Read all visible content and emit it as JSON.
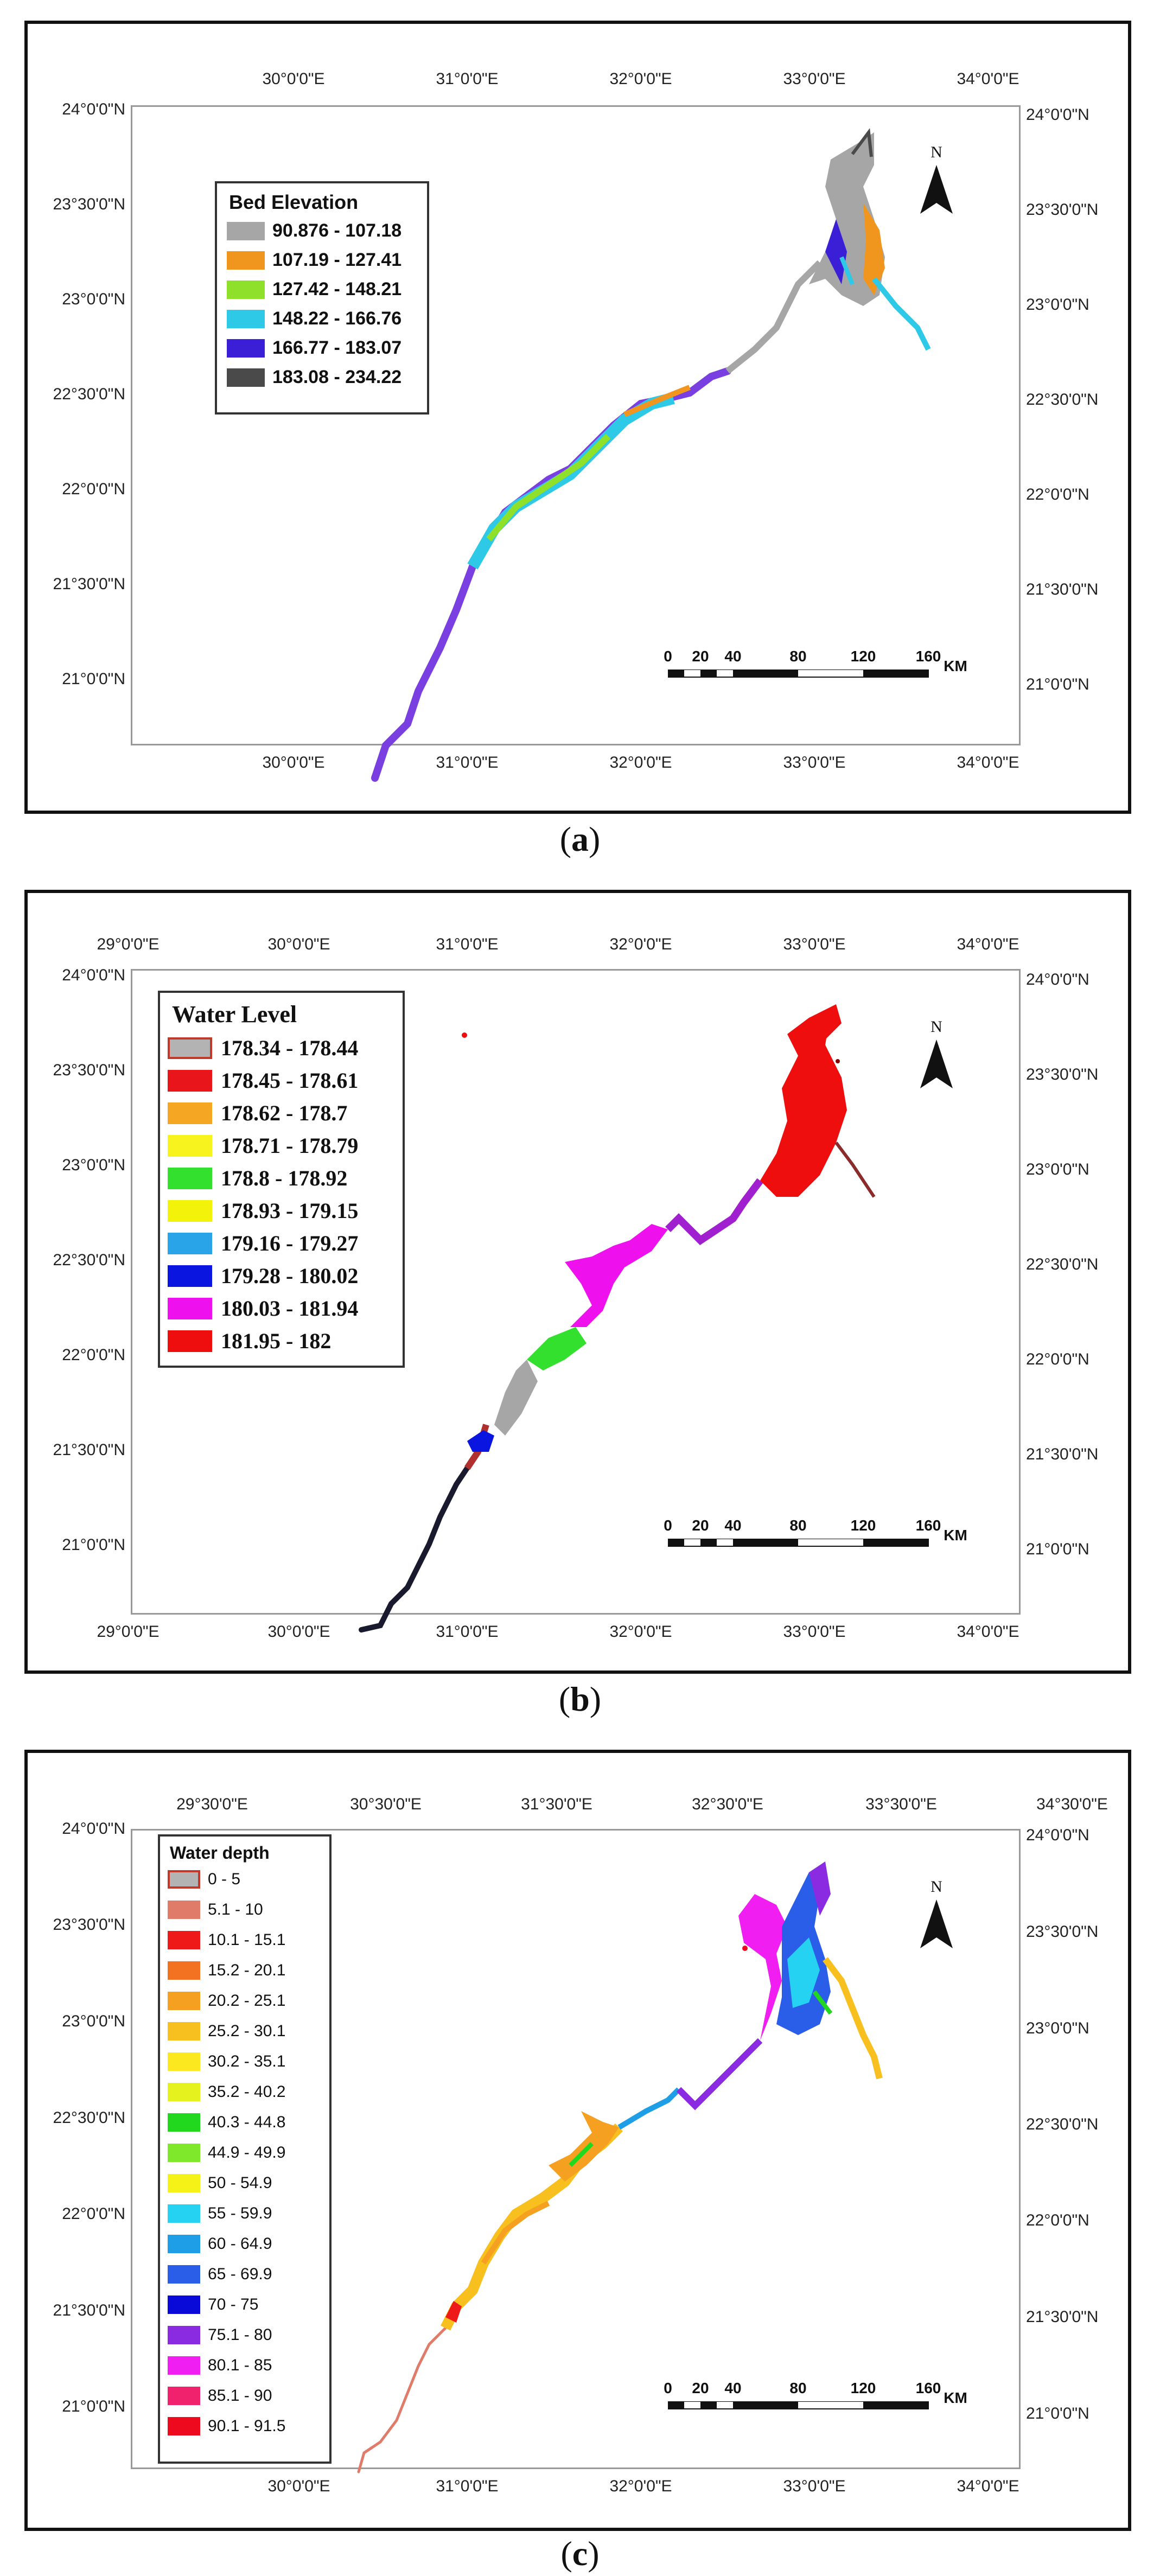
{
  "panels": [
    {
      "id": "a",
      "caption_open": "(",
      "caption_letter": "a",
      "caption_close": ")",
      "top_ticks": [
        "30°0'0\"E",
        "31°0'0\"E",
        "32°0'0\"E",
        "33°0'0\"E",
        "34°0'0\"E"
      ],
      "bottom_ticks": [
        "30°0'0\"E",
        "31°0'0\"E",
        "32°0'0\"E",
        "33°0'0\"E",
        "34°0'0\"E"
      ],
      "left_ticks": [
        "24°0'0\"N",
        "23°30'0\"N",
        "23°0'0\"N",
        "22°30'0\"N",
        "22°0'0\"N",
        "21°30'0\"N",
        "21°0'0\"N"
      ],
      "right_ticks": [
        "24°0'0\"N",
        "23°30'0\"N",
        "23°0'0\"N",
        "22°30'0\"N",
        "22°0'0\"N",
        "21°30'0\"N",
        "21°0'0\"N"
      ],
      "legend": {
        "title": "Bed Elevation",
        "items": [
          {
            "label": "90.876 - 107.18",
            "color": "#a6a6a6"
          },
          {
            "label": "107.19 - 127.41",
            "color": "#f0961e"
          },
          {
            "label": "127.42 - 148.21",
            "color": "#8fe02a"
          },
          {
            "label": "148.22 - 166.76",
            "color": "#2fc9e8"
          },
          {
            "label": "166.77 - 183.07",
            "color": "#3a1fd6"
          },
          {
            "label": "183.08 - 234.22",
            "color": "#4a4a4a"
          }
        ]
      },
      "scale": {
        "labels": [
          "0",
          "20",
          "40",
          "80",
          "120",
          "160"
        ],
        "unit": "KM"
      },
      "north": "N"
    },
    {
      "id": "b",
      "caption_open": "(",
      "caption_letter": "b",
      "caption_close": ")",
      "top_ticks": [
        "29°0'0\"E",
        "30°0'0\"E",
        "31°0'0\"E",
        "32°0'0\"E",
        "33°0'0\"E",
        "34°0'0\"E"
      ],
      "bottom_ticks": [
        "29°0'0\"E",
        "30°0'0\"E",
        "31°0'0\"E",
        "32°0'0\"E",
        "33°0'0\"E",
        "34°0'0\"E"
      ],
      "left_ticks": [
        "24°0'0\"N",
        "23°30'0\"N",
        "23°0'0\"N",
        "22°30'0\"N",
        "22°0'0\"N",
        "21°30'0\"N",
        "21°0'0\"N"
      ],
      "right_ticks": [
        "24°0'0\"N",
        "23°30'0\"N",
        "23°0'0\"N",
        "22°30'0\"N",
        "22°0'0\"N",
        "21°30'0\"N",
        "21°0'0\"N"
      ],
      "legend": {
        "title": "Water Level",
        "items": [
          {
            "label": "178.34 - 178.44",
            "color": "#b3b3b3",
            "outline": "#c0392b"
          },
          {
            "label": "178.45 - 178.61",
            "color": "#e8161b"
          },
          {
            "label": "178.62 - 178.7",
            "color": "#f5a623"
          },
          {
            "label": "178.71 - 178.79",
            "color": "#f7f31f"
          },
          {
            "label": "178.8 - 178.92",
            "color": "#33e02e"
          },
          {
            "label": "178.93 - 179.15",
            "color": "#f2f20a"
          },
          {
            "label": "179.16 - 179.27",
            "color": "#29a4e8"
          },
          {
            "label": "179.28 - 180.02",
            "color": "#0a16e0"
          },
          {
            "label": "180.03 - 181.94",
            "color": "#ee11ee"
          },
          {
            "label": "181.95 - 182",
            "color": "#ee0e0e"
          }
        ]
      },
      "scale": {
        "labels": [
          "0",
          "20",
          "40",
          "80",
          "120",
          "160"
        ],
        "unit": "KM"
      },
      "north": "N"
    },
    {
      "id": "c",
      "caption_open": "(",
      "caption_letter": "c",
      "caption_close": ")",
      "top_ticks": [
        "29°30'0\"E",
        "30°30'0\"E",
        "31°30'0\"E",
        "32°30'0\"E",
        "33°30'0\"E",
        "34°30'0\"E"
      ],
      "bottom_ticks": [
        "30°0'0\"E",
        "31°0'0\"E",
        "32°0'0\"E",
        "33°0'0\"E",
        "34°0'0\"E"
      ],
      "left_ticks": [
        "24°0'0\"N",
        "23°30'0\"N",
        "23°0'0\"N",
        "22°30'0\"N",
        "22°0'0\"N",
        "21°30'0\"N",
        "21°0'0\"N"
      ],
      "right_ticks": [
        "24°0'0\"N",
        "23°30'0\"N",
        "23°0'0\"N",
        "22°30'0\"N",
        "22°0'0\"N",
        "21°30'0\"N",
        "21°0'0\"N"
      ],
      "legend": {
        "title": "Water depth",
        "items": [
          {
            "label": "0 - 5",
            "color": "#b3b3b3",
            "outline": "#c0392b"
          },
          {
            "label": "5.1 - 10",
            "color": "#e07b6a"
          },
          {
            "label": "10.1 - 15.1",
            "color": "#ee1a1a"
          },
          {
            "label": "15.2 - 20.1",
            "color": "#f27222"
          },
          {
            "label": "20.2 - 25.1",
            "color": "#f5a020"
          },
          {
            "label": "25.2 - 30.1",
            "color": "#f7c01e"
          },
          {
            "label": "30.2 - 35.1",
            "color": "#fbe81e"
          },
          {
            "label": "35.2 - 40.2",
            "color": "#e6f21e"
          },
          {
            "label": "40.3 - 44.8",
            "color": "#22d81e"
          },
          {
            "label": "44.9 - 49.9",
            "color": "#7fe82a"
          },
          {
            "label": "50 - 54.9",
            "color": "#f5f218"
          },
          {
            "label": "55 - 59.9",
            "color": "#26d2f2"
          },
          {
            "label": "60 - 64.9",
            "color": "#1e9ee6"
          },
          {
            "label": "65 - 69.9",
            "color": "#2a5ee8"
          },
          {
            "label": "70 - 75",
            "color": "#0a0ad8"
          },
          {
            "label": "75.1 - 80",
            "color": "#8a2be2"
          },
          {
            "label": "80.1 - 85",
            "color": "#f01ef0"
          },
          {
            "label": "85.1 - 90",
            "color": "#f0226e"
          },
          {
            "label": "90.1 - 91.5",
            "color": "#ee0a1e"
          }
        ]
      },
      "scale": {
        "labels": [
          "0",
          "20",
          "40",
          "80",
          "120",
          "160"
        ],
        "unit": "KM"
      },
      "north": "N"
    }
  ]
}
